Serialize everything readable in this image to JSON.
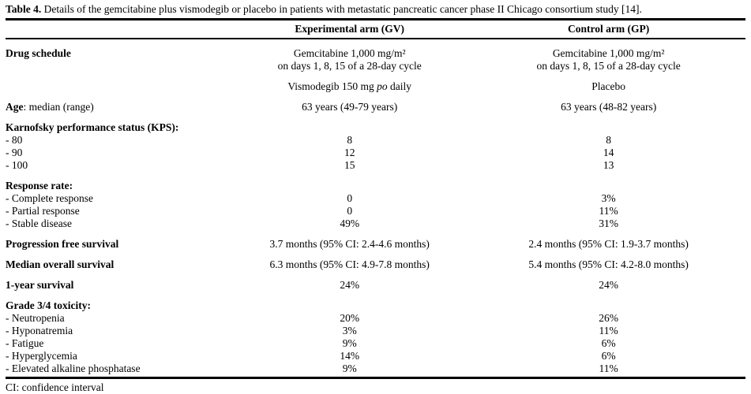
{
  "caption": {
    "label": "Table 4.",
    "text": "Details of the gemcitabine plus vismodegib or placebo in patients with metastatic pancreatic cancer phase II Chicago consortium study [14]."
  },
  "table": {
    "columns": [
      "",
      "Experimental arm (GV)",
      "Control arm (GP)"
    ],
    "rows": [
      {
        "gap": true,
        "label": "**Drug schedule**",
        "experimental": "Gemcitabine 1,000 mg/m²\non days 1, 8, 15 of a 28-day cycle",
        "control": "Gemcitabine 1,000 mg/m²\non days 1, 8, 15 of a 28-day cycle"
      },
      {
        "gap": true,
        "label": "",
        "experimental": "Vismodegib 150 mg *po* daily",
        "control": "Placebo"
      },
      {
        "gap": true,
        "label": "**Age**: median (range)",
        "experimental": "63 years (49-79 years)",
        "control": "63 years (48-82 years)"
      },
      {
        "gap": true,
        "label": "**Karnofsky performance status (KPS):**",
        "experimental": "",
        "control": ""
      },
      {
        "gap": false,
        "label": "- 80",
        "experimental": "8",
        "control": "8"
      },
      {
        "gap": false,
        "label": "- 90",
        "experimental": "12",
        "control": "14"
      },
      {
        "gap": false,
        "label": "- 100",
        "experimental": "15",
        "control": "13"
      },
      {
        "gap": true,
        "label": "**Response rate:**",
        "experimental": "",
        "control": ""
      },
      {
        "gap": false,
        "label": "- Complete response",
        "experimental": "0",
        "control": "3%"
      },
      {
        "gap": false,
        "label": "- Partial response",
        "experimental": "0",
        "control": "11%"
      },
      {
        "gap": false,
        "label": "- Stable disease",
        "experimental": "49%",
        "control": "31%"
      },
      {
        "gap": true,
        "label": "**Progression free survival**",
        "experimental": "3.7 months (95% CI: 2.4-4.6 months)",
        "control": "2.4 months (95% CI: 1.9-3.7 months)"
      },
      {
        "gap": true,
        "label": "**Median overall survival**",
        "experimental": "6.3 months (95% CI: 4.9-7.8 months)",
        "control": "5.4 months (95% CI: 4.2-8.0 months)"
      },
      {
        "gap": true,
        "label": "**1-year survival**",
        "experimental": "24%",
        "control": "24%"
      },
      {
        "gap": true,
        "label": "**Grade 3/4 toxicity:**",
        "experimental": "",
        "control": ""
      },
      {
        "gap": false,
        "label": "- Neutropenia",
        "experimental": "20%",
        "control": "26%"
      },
      {
        "gap": false,
        "label": "- Hyponatremia",
        "experimental": "3%",
        "control": "11%"
      },
      {
        "gap": false,
        "label": "- Fatigue",
        "experimental": "9%",
        "control": "6%"
      },
      {
        "gap": false,
        "label": "- Hyperglycemia",
        "experimental": "14%",
        "control": "6%"
      },
      {
        "gap": false,
        "label": "- Elevated alkaline phosphatase",
        "experimental": "9%",
        "control": "11%"
      }
    ]
  },
  "footnote": "CI: confidence interval"
}
